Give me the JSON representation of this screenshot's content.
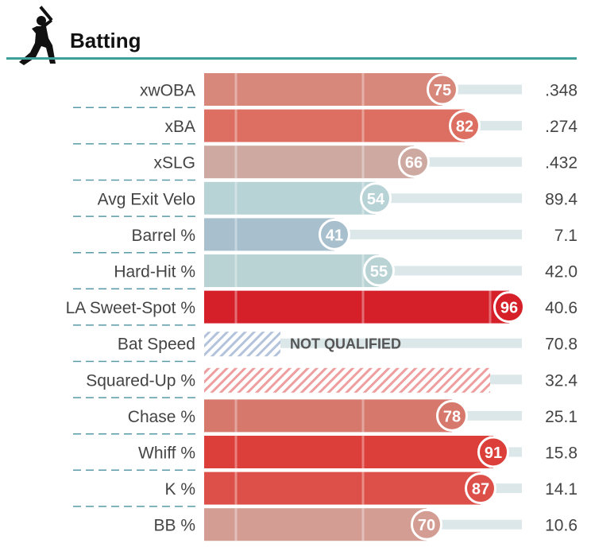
{
  "header": {
    "title": "Batting",
    "icon": "batter-silhouette-icon",
    "accent_color": "#3f9f9a"
  },
  "chart_data": {
    "type": "bar",
    "orientation": "horizontal",
    "title": "Batting",
    "xlim": [
      0,
      100
    ],
    "reference_lines": [
      10,
      50,
      90
    ],
    "colors": {
      "low": "#3d7ea8",
      "mid": "#c9c9c9",
      "high": "#d5202a"
    },
    "rows": [
      {
        "label": "xwOBA",
        "percentile": 75,
        "value": ".348",
        "qualified": true,
        "color": "#d8877b"
      },
      {
        "label": "xBA",
        "percentile": 82,
        "value": ".274",
        "qualified": true,
        "color": "#dc6f62"
      },
      {
        "label": "xSLG",
        "percentile": 66,
        "value": ".432",
        "qualified": true,
        "color": "#cda9a2"
      },
      {
        "label": "Avg Exit Velo",
        "percentile": 54,
        "value": "89.4",
        "qualified": true,
        "color": "#b8d3d6"
      },
      {
        "label": "Barrel %",
        "percentile": 41,
        "value": "7.1",
        "qualified": true,
        "color": "#a8c0ce"
      },
      {
        "label": "Hard-Hit %",
        "percentile": 55,
        "value": "42.0",
        "qualified": true,
        "color": "#b9d3d5"
      },
      {
        "label": "LA Sweet-Spot %",
        "percentile": 96,
        "value": "40.6",
        "qualified": true,
        "color": "#d5202a"
      },
      {
        "label": "Bat Speed",
        "percentile": 24,
        "value": "70.8",
        "qualified": false,
        "note": "NOT QUALIFIED",
        "color": "#b3c3db"
      },
      {
        "label": "Squared-Up %",
        "percentile": 90,
        "value": "32.4",
        "qualified": false,
        "note": "",
        "color": "#ee9e9e"
      },
      {
        "label": "Chase %",
        "percentile": 78,
        "value": "25.1",
        "qualified": true,
        "color": "#d6796c"
      },
      {
        "label": "Whiff %",
        "percentile": 91,
        "value": "15.8",
        "qualified": true,
        "color": "#dc3e39"
      },
      {
        "label": "K %",
        "percentile": 87,
        "value": "14.1",
        "qualified": true,
        "color": "#dc5049"
      },
      {
        "label": "BB %",
        "percentile": 70,
        "value": "10.6",
        "qualified": true,
        "color": "#d39d94"
      }
    ]
  }
}
